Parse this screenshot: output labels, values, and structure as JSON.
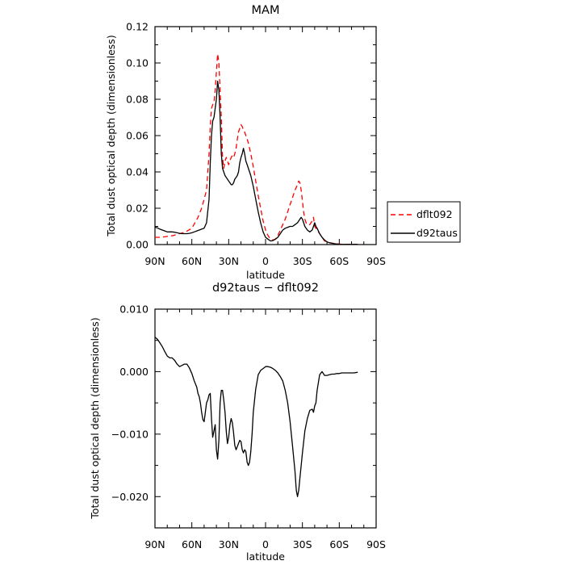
{
  "chart_data": [
    {
      "type": "line",
      "title": "MAM",
      "xlabel": "latitude",
      "ylabel": "Total dust optical depth (dimensionless)",
      "xlim": [
        90,
        -90
      ],
      "ylim": [
        0,
        0.12
      ],
      "x_ticks": [
        90,
        60,
        30,
        0,
        -30,
        -60,
        -90
      ],
      "x_tick_labels": [
        "90N",
        "60N",
        "30N",
        "0",
        "30S",
        "60S",
        "90S"
      ],
      "y_ticks": [
        0,
        0.02,
        0.04,
        0.06,
        0.08,
        0.1,
        0.12
      ],
      "y_tick_labels": [
        "0.00",
        "0.02",
        "0.04",
        "0.06",
        "0.08",
        "0.10",
        "0.12"
      ],
      "grid": false,
      "legend_position": "right",
      "series": [
        {
          "name": "dflt092",
          "color": "#ff0000",
          "dash": "dashed",
          "x": [
            90,
            85,
            80,
            75,
            70,
            65,
            60,
            55,
            52,
            50,
            48,
            46,
            45,
            44,
            43,
            42,
            41,
            40,
            39,
            38,
            37,
            36,
            35,
            34,
            33,
            32,
            31,
            30,
            29,
            28,
            27,
            26,
            25,
            24,
            23,
            22,
            21,
            20,
            19,
            18,
            17,
            16,
            15,
            14,
            13,
            12,
            10,
            8,
            6,
            4,
            2,
            0,
            -2,
            -4,
            -6,
            -8,
            -10,
            -12,
            -14,
            -16,
            -18,
            -20,
            -22,
            -24,
            -26,
            -27,
            -28,
            -29,
            -30,
            -31,
            -32,
            -33,
            -34,
            -35,
            -36,
            -37,
            -38,
            -39,
            -40,
            -42,
            -44,
            -46,
            -48,
            -50,
            -52,
            -54,
            -56,
            -58,
            -60,
            -62,
            -64,
            -66,
            -68,
            -70,
            -72,
            -75
          ],
          "y": [
            0.004,
            0.004,
            0.0045,
            0.005,
            0.006,
            0.007,
            0.009,
            0.015,
            0.02,
            0.025,
            0.03,
            0.05,
            0.065,
            0.075,
            0.077,
            0.078,
            0.085,
            0.095,
            0.105,
            0.1,
            0.085,
            0.07,
            0.048,
            0.042,
            0.046,
            0.048,
            0.046,
            0.044,
            0.046,
            0.048,
            0.049,
            0.048,
            0.05,
            0.053,
            0.058,
            0.062,
            0.064,
            0.066,
            0.065,
            0.063,
            0.062,
            0.06,
            0.058,
            0.056,
            0.053,
            0.05,
            0.043,
            0.035,
            0.027,
            0.02,
            0.013,
            0.008,
            0.005,
            0.003,
            0.0025,
            0.003,
            0.005,
            0.008,
            0.011,
            0.014,
            0.018,
            0.022,
            0.026,
            0.03,
            0.033,
            0.035,
            0.034,
            0.03,
            0.024,
            0.018,
            0.014,
            0.012,
            0.011,
            0.011,
            0.011,
            0.012,
            0.013,
            0.015,
            0.01,
            0.008,
            0.006,
            0.004,
            0.002,
            0.0015,
            0.001,
            0.0008,
            0.0006,
            0.0004,
            0.0003,
            0.0002,
            0.0002,
            0.0001,
            0.0001,
            0.0001,
            0.0001,
            0.0001
          ]
        },
        {
          "name": "d92taus",
          "color": "#000000",
          "dash": "solid",
          "x": [
            90,
            88,
            86,
            84,
            82,
            80,
            78,
            76,
            74,
            72,
            70,
            68,
            66,
            64,
            62,
            60,
            58,
            56,
            54,
            52,
            50,
            48,
            46,
            45,
            44,
            43,
            42,
            41,
            40,
            39,
            38,
            37,
            36,
            35,
            34,
            33,
            32,
            31,
            30,
            29,
            28,
            27,
            26,
            25,
            24,
            23,
            22,
            21,
            20,
            19,
            18,
            17,
            16,
            15,
            14,
            13,
            12,
            10,
            8,
            6,
            4,
            2,
            0,
            -2,
            -4,
            -6,
            -8,
            -10,
            -12,
            -14,
            -16,
            -18,
            -20,
            -22,
            -24,
            -26,
            -28,
            -29,
            -30,
            -31,
            -32,
            -34,
            -36,
            -38,
            -39,
            -40,
            -41,
            -42,
            -44,
            -46,
            -48,
            -50,
            -52,
            -54,
            -56,
            -58,
            -60,
            -62,
            -64,
            -66,
            -68,
            -70,
            -72,
            -75
          ],
          "y": [
            0.0095,
            0.0092,
            0.0085,
            0.008,
            0.0075,
            0.007,
            0.007,
            0.007,
            0.0068,
            0.0065,
            0.0062,
            0.006,
            0.006,
            0.006,
            0.0062,
            0.0065,
            0.007,
            0.0075,
            0.008,
            0.0085,
            0.009,
            0.012,
            0.025,
            0.045,
            0.06,
            0.068,
            0.07,
            0.075,
            0.08,
            0.09,
            0.085,
            0.07,
            0.05,
            0.042,
            0.04,
            0.038,
            0.037,
            0.036,
            0.035,
            0.034,
            0.033,
            0.033,
            0.034,
            0.036,
            0.037,
            0.038,
            0.04,
            0.045,
            0.048,
            0.05,
            0.053,
            0.05,
            0.046,
            0.044,
            0.042,
            0.04,
            0.038,
            0.032,
            0.025,
            0.018,
            0.012,
            0.007,
            0.004,
            0.003,
            0.002,
            0.0022,
            0.003,
            0.004,
            0.006,
            0.008,
            0.009,
            0.0095,
            0.01,
            0.01,
            0.011,
            0.012,
            0.014,
            0.015,
            0.014,
            0.012,
            0.01,
            0.008,
            0.007,
            0.008,
            0.01,
            0.012,
            0.01,
            0.009,
            0.006,
            0.004,
            0.0025,
            0.0015,
            0.001,
            0.0007,
            0.0005,
            0.0003,
            0.0002,
            0.0001,
            0.0001,
            0.0001,
            0.0001,
            0.0001,
            0.0001,
            0.0001
          ]
        }
      ]
    },
    {
      "type": "line",
      "title": "d92taus − dflt092",
      "xlabel": "latitude",
      "ylabel": "Total dust optical depth (dimensionless)",
      "xlim": [
        90,
        -90
      ],
      "ylim": [
        -0.025,
        0.01
      ],
      "x_ticks": [
        90,
        60,
        30,
        0,
        -30,
        -60,
        -90
      ],
      "x_tick_labels": [
        "90N",
        "60N",
        "30N",
        "0",
        "30S",
        "60S",
        "90S"
      ],
      "y_ticks": [
        -0.02,
        -0.01,
        0.0,
        0.01
      ],
      "y_tick_labels": [
        "−0.020",
        "−0.010",
        "0.000",
        "0.010"
      ],
      "y_minor_ticks": [
        -0.025,
        -0.015,
        -0.005,
        0.005
      ],
      "grid": false,
      "series": [
        {
          "name": "",
          "color": "#000000",
          "dash": "solid",
          "x": [
            90,
            88,
            86,
            84,
            82,
            80,
            78,
            76,
            74,
            72,
            70,
            68,
            66,
            64,
            62,
            60,
            58,
            56,
            55,
            54,
            53,
            52,
            51,
            50,
            49,
            48,
            47,
            46,
            45,
            44,
            43,
            42,
            41,
            40,
            39,
            38,
            37,
            36,
            35,
            34,
            33,
            32,
            31,
            30,
            29,
            28,
            27,
            26,
            25,
            24,
            23,
            22,
            21,
            20,
            19,
            18,
            17,
            16,
            15,
            14,
            13,
            12,
            11,
            10,
            8,
            6,
            4,
            2,
            0,
            -2,
            -4,
            -6,
            -8,
            -10,
            -12,
            -14,
            -16,
            -18,
            -20,
            -22,
            -24,
            -25,
            -26,
            -27,
            -28,
            -30,
            -32,
            -34,
            -36,
            -38,
            -39,
            -40,
            -41,
            -42,
            -44,
            -46,
            -48,
            -50,
            -52,
            -54,
            -56,
            -58,
            -60,
            -62,
            -64,
            -66,
            -68,
            -70,
            -72,
            -75
          ],
          "y": [
            0.0055,
            0.0052,
            0.0046,
            0.004,
            0.0032,
            0.0025,
            0.0022,
            0.0022,
            0.0018,
            0.0012,
            0.0008,
            0.001,
            0.0012,
            0.0012,
            0.0006,
            -0.0003,
            -0.0015,
            -0.0025,
            -0.0035,
            -0.004,
            -0.005,
            -0.0065,
            -0.0077,
            -0.008,
            -0.0065,
            -0.005,
            -0.0045,
            -0.0037,
            -0.0035,
            -0.0075,
            -0.0105,
            -0.0095,
            -0.0085,
            -0.0125,
            -0.014,
            -0.011,
            -0.005,
            -0.003,
            -0.003,
            -0.0045,
            -0.0065,
            -0.0095,
            -0.0115,
            -0.0105,
            -0.0085,
            -0.0075,
            -0.0082,
            -0.0098,
            -0.0118,
            -0.0125,
            -0.012,
            -0.0115,
            -0.011,
            -0.0112,
            -0.0125,
            -0.013,
            -0.0125,
            -0.0128,
            -0.0145,
            -0.015,
            -0.0145,
            -0.0128,
            -0.01,
            -0.0065,
            -0.0028,
            -0.0005,
            0.0002,
            0.0005,
            0.0008,
            0.0008,
            0.0007,
            0.0005,
            0.0002,
            -0.0002,
            -0.0008,
            -0.0015,
            -0.003,
            -0.005,
            -0.008,
            -0.012,
            -0.016,
            -0.019,
            -0.02,
            -0.019,
            -0.017,
            -0.013,
            -0.0095,
            -0.0075,
            -0.0062,
            -0.006,
            -0.0065,
            -0.0055,
            -0.005,
            -0.003,
            -0.0005,
            0.0,
            -0.0006,
            -0.0006,
            -0.0005,
            -0.0004,
            -0.0004,
            -0.0003,
            -0.0003,
            -0.0002,
            -0.0002,
            -0.0002,
            -0.0002,
            -0.0002,
            -0.0002,
            -0.0001
          ]
        }
      ]
    }
  ]
}
